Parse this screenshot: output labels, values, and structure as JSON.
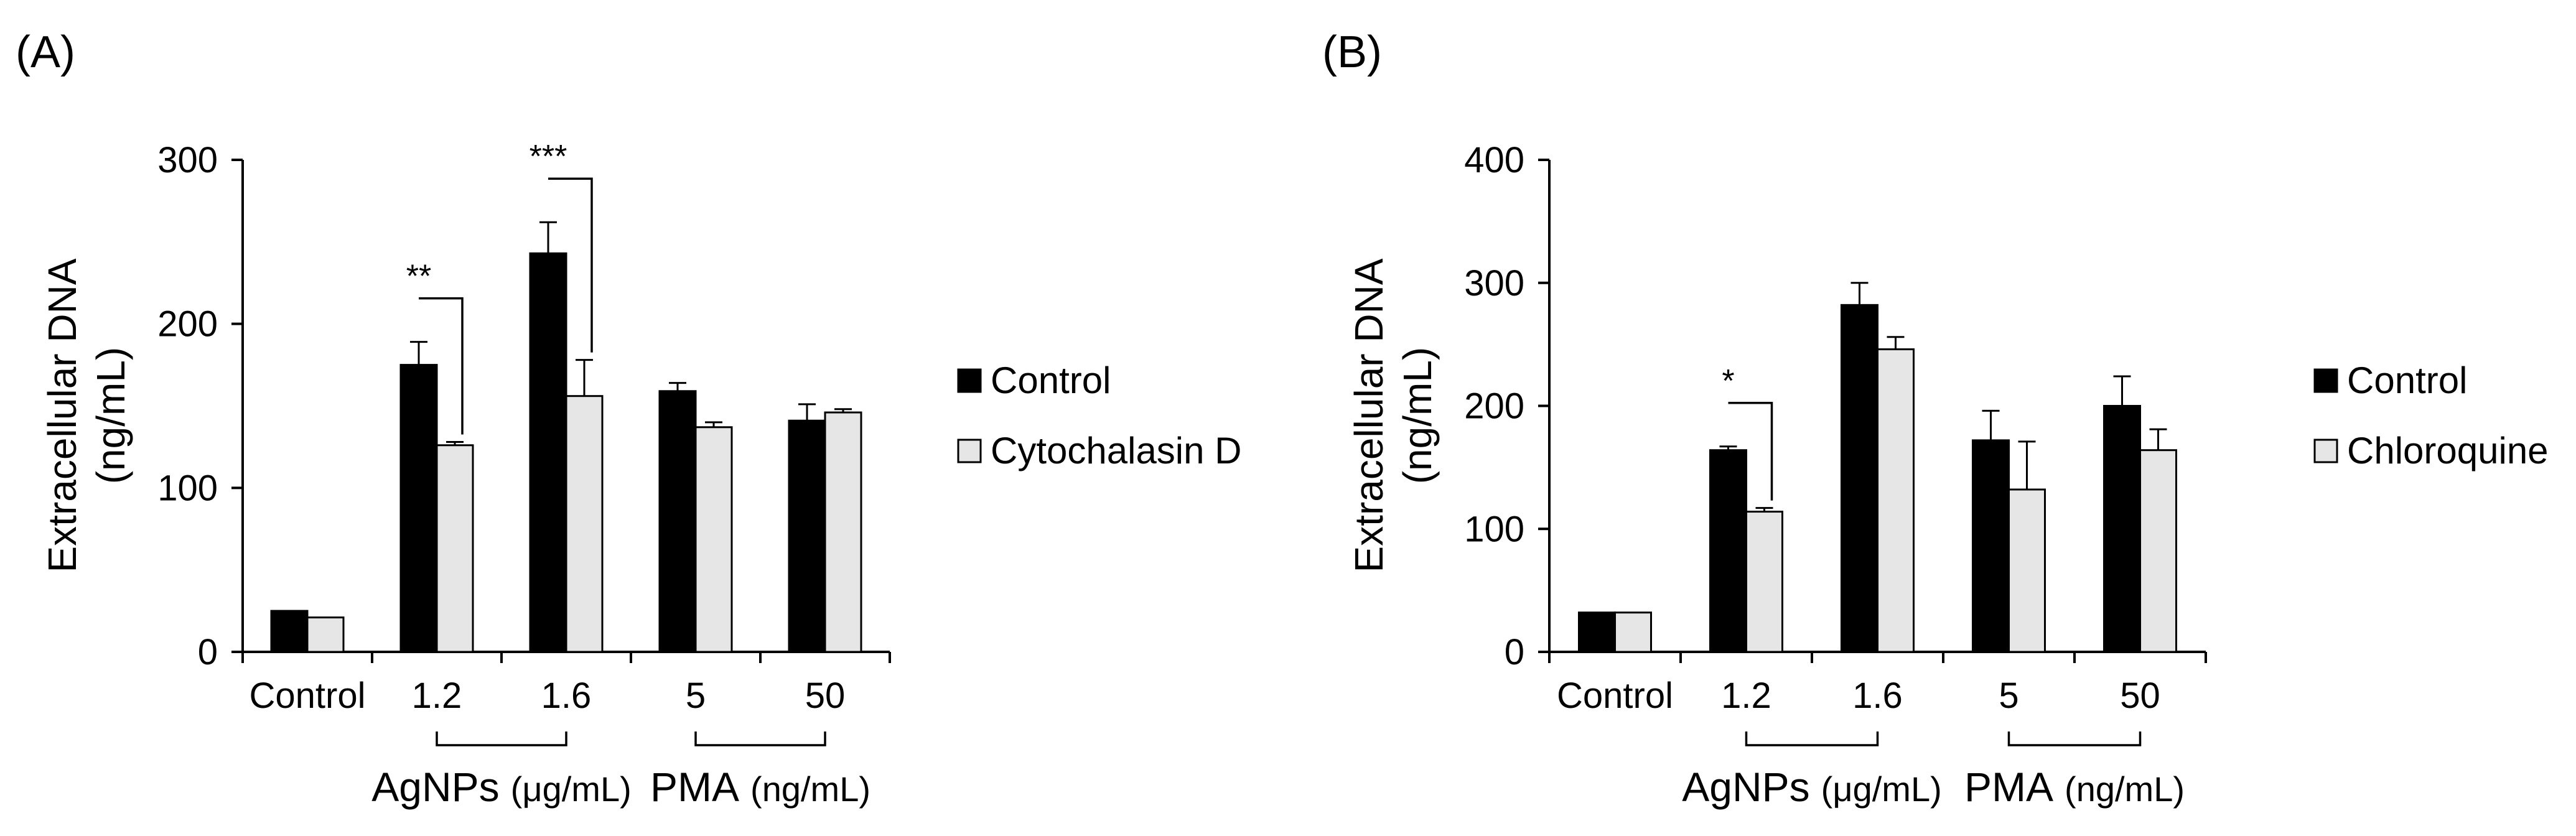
{
  "chart_data": [
    {
      "type": "bar",
      "panel_label": "(A)",
      "ylabel_line1": "Extracellular DNA",
      "ylabel_line2": "(ng/mL)",
      "ylim": [
        0,
        300
      ],
      "yticks": [
        "0",
        "100",
        "200",
        "300"
      ],
      "categories": [
        "Control",
        "1.2",
        "1.6",
        "5",
        "50"
      ],
      "groups": [
        {
          "label": "AgNPs",
          "unit": "(μg/mL)",
          "covers": [
            "1.2",
            "1.6"
          ]
        },
        {
          "label": "PMA",
          "unit": "(ng/mL)",
          "covers": [
            "5",
            "50"
          ]
        }
      ],
      "series": [
        {
          "name": "Control",
          "color": "#000000",
          "values": [
            25,
            175,
            243,
            159,
            141
          ],
          "errors": [
            0,
            14,
            19,
            5,
            10
          ]
        },
        {
          "name": "Cytochalasin D",
          "color": "#e6e6e6",
          "values": [
            21,
            126,
            156,
            137,
            146
          ],
          "errors": [
            0,
            2,
            22,
            3,
            2
          ]
        }
      ],
      "significance": [
        {
          "category": "1.2",
          "label": "**"
        },
        {
          "category": "1.6",
          "label": "***"
        }
      ]
    },
    {
      "type": "bar",
      "panel_label": "(B)",
      "ylabel_line1": "Extracellular DNA",
      "ylabel_line2": "(ng/mL)",
      "ylim": [
        0,
        400
      ],
      "yticks": [
        "0",
        "100",
        "200",
        "300",
        "400"
      ],
      "categories": [
        "Control",
        "1.2",
        "1.6",
        "5",
        "50"
      ],
      "groups": [
        {
          "label": "AgNPs",
          "unit": "(μg/mL)",
          "covers": [
            "1.2",
            "1.6"
          ]
        },
        {
          "label": "PMA",
          "unit": "(ng/mL)",
          "covers": [
            "5",
            "50"
          ]
        }
      ],
      "series": [
        {
          "name": "Control",
          "color": "#000000",
          "values": [
            32,
            164,
            282,
            172,
            200
          ],
          "errors": [
            0,
            3,
            18,
            24,
            24
          ]
        },
        {
          "name": "Chloroquine",
          "color": "#e6e6e6",
          "values": [
            32,
            114,
            246,
            132,
            164
          ],
          "errors": [
            0,
            3,
            10,
            39,
            17
          ]
        }
      ],
      "significance": [
        {
          "category": "1.2",
          "label": "*"
        }
      ]
    }
  ]
}
